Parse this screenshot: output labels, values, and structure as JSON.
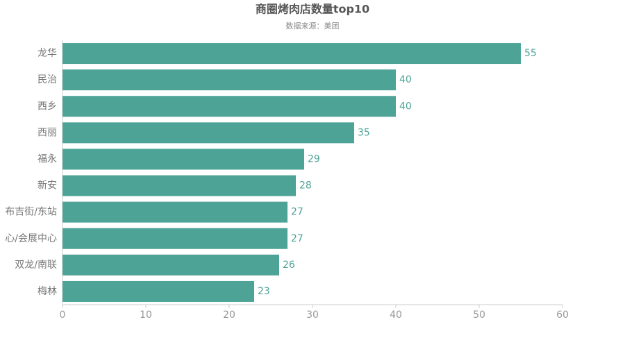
{
  "chart_data": {
    "type": "bar",
    "orientation": "horizontal",
    "title": "商圈烤肉店数量top10",
    "subtitle": "数据来源：美团",
    "categories": [
      "龙华",
      "民治",
      "西乡",
      "西丽",
      "福永",
      "新安",
      "布吉街/东站",
      "心/会展中心",
      "双龙/南联",
      "梅林"
    ],
    "values": [
      55,
      40,
      40,
      35,
      29,
      28,
      27,
      27,
      26,
      23
    ],
    "color": "#4ea397",
    "xlim": [
      0,
      60
    ],
    "xticks": [
      0,
      10,
      20,
      30,
      40,
      50,
      60
    ]
  }
}
